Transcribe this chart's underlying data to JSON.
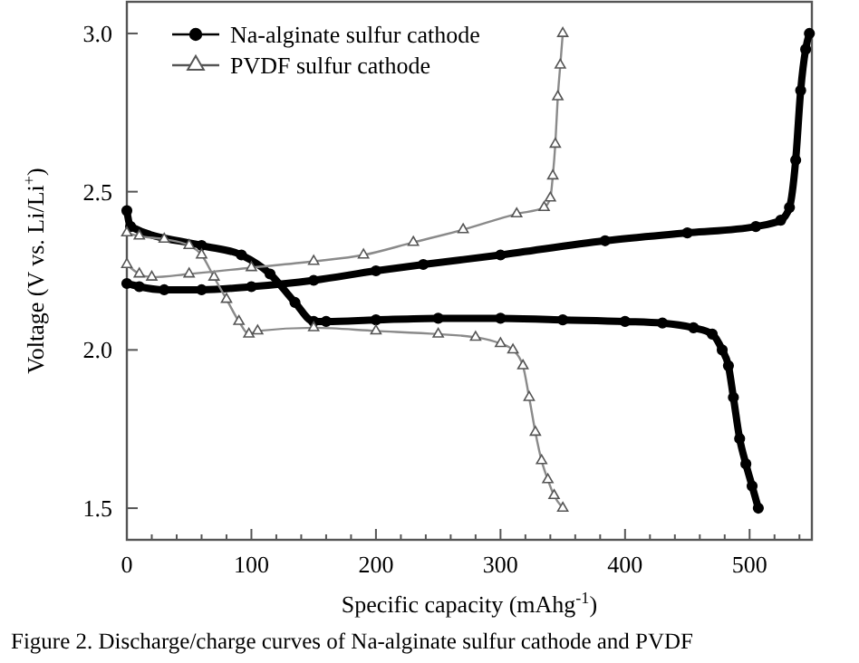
{
  "chart_data": {
    "type": "line",
    "xlabel": "Specific capacity (mAhg$^{-1}$)",
    "ylabel": "Voltage (V vs. Li/Li$^{+}$)",
    "annotations": [
      "Figure 2. Discharge/charge curves of Na-alginate sulfur cathode and PVDF"
    ],
    "xlim": [
      0,
      550
    ],
    "ylim": [
      1.4,
      3.1
    ],
    "xticks": [
      0,
      {
        "value": 20,
        "label": null
      },
      {
        "value": 40,
        "label": null
      },
      {
        "value": 60,
        "label": null
      },
      {
        "value": 80,
        "label": null
      },
      100,
      {
        "value": 120,
        "label": null
      },
      {
        "value": 140,
        "label": null
      },
      {
        "value": 160,
        "label": null
      },
      {
        "value": 180,
        "label": null
      },
      200,
      {
        "value": 220,
        "label": null
      },
      {
        "value": 240,
        "label": null
      },
      {
        "value": 260,
        "label": null
      },
      {
        "value": 280,
        "label": null
      },
      300,
      {
        "value": 320,
        "label": null
      },
      {
        "value": 340,
        "label": null
      },
      {
        "value": 360,
        "label": null
      },
      {
        "value": 380,
        "label": null
      },
      400,
      {
        "value": 420,
        "label": null
      },
      {
        "value": 440,
        "label": null
      },
      {
        "value": 460,
        "label": null
      },
      {
        "value": 480,
        "label": null
      },
      500,
      {
        "value": 520,
        "label": null
      },
      {
        "value": 540,
        "label": null
      }
    ],
    "yticks": [
      1.5,
      {
        "value": 2,
        "label": "2.0"
      },
      2.5,
      {
        "value": 3,
        "label": "3.0"
      }
    ],
    "grid": false,
    "legend": "top left",
    "line_style": "solid",
    "series": [
      {
        "name": "Na-alginate sulfur cathode",
        "color": "#000000",
        "marker": "circle",
        "x": [
          0,
          3,
          60,
          92,
          115,
          135,
          150,
          160,
          200,
          250,
          300,
          350,
          400,
          430,
          455,
          470,
          478,
          483,
          487,
          492,
          497,
          502,
          507
        ],
        "values": [
          2.44,
          2.39,
          2.33,
          2.3,
          2.24,
          2.15,
          2.09,
          2.09,
          2.095,
          2.1,
          2.1,
          2.095,
          2.09,
          2.085,
          2.07,
          2.05,
          2.0,
          1.95,
          1.85,
          1.72,
          1.64,
          1.57,
          1.5
        ]
      },
      {
        "name": "PVDF sulfur cathode",
        "color": "#8a8a8a",
        "marker": "triangle",
        "x": [
          0,
          10,
          30,
          50,
          60,
          70,
          80,
          90,
          98,
          105,
          150,
          200,
          250,
          280,
          300,
          310,
          318,
          323,
          328,
          333,
          338,
          343,
          350
        ],
        "values": [
          2.37,
          2.36,
          2.35,
          2.33,
          2.3,
          2.23,
          2.16,
          2.09,
          2.05,
          2.06,
          2.07,
          2.06,
          2.05,
          2.04,
          2.02,
          2.0,
          1.95,
          1.85,
          1.74,
          1.65,
          1.59,
          1.54,
          1.5
        ]
      },
      {
        "color": "#000000",
        "marker": "circle",
        "x": [
          0,
          10,
          30,
          60,
          100,
          150,
          200,
          238,
          300,
          384,
          450,
          505,
          525,
          532,
          537,
          541,
          545,
          548
        ],
        "values": [
          2.21,
          2.2,
          2.19,
          2.19,
          2.2,
          2.22,
          2.25,
          2.27,
          2.3,
          2.345,
          2.37,
          2.39,
          2.41,
          2.45,
          2.6,
          2.82,
          2.95,
          3.0
        ]
      },
      {
        "color": "#8a8a8a",
        "marker": "triangle",
        "x": [
          0,
          10,
          20,
          50,
          100,
          150,
          190,
          230,
          270,
          313,
          335,
          340,
          342,
          344,
          346,
          348,
          350
        ],
        "values": [
          2.27,
          2.24,
          2.23,
          2.24,
          2.26,
          2.28,
          2.3,
          2.34,
          2.38,
          2.43,
          2.45,
          2.48,
          2.55,
          2.65,
          2.8,
          2.9,
          3.0
        ]
      }
    ]
  }
}
